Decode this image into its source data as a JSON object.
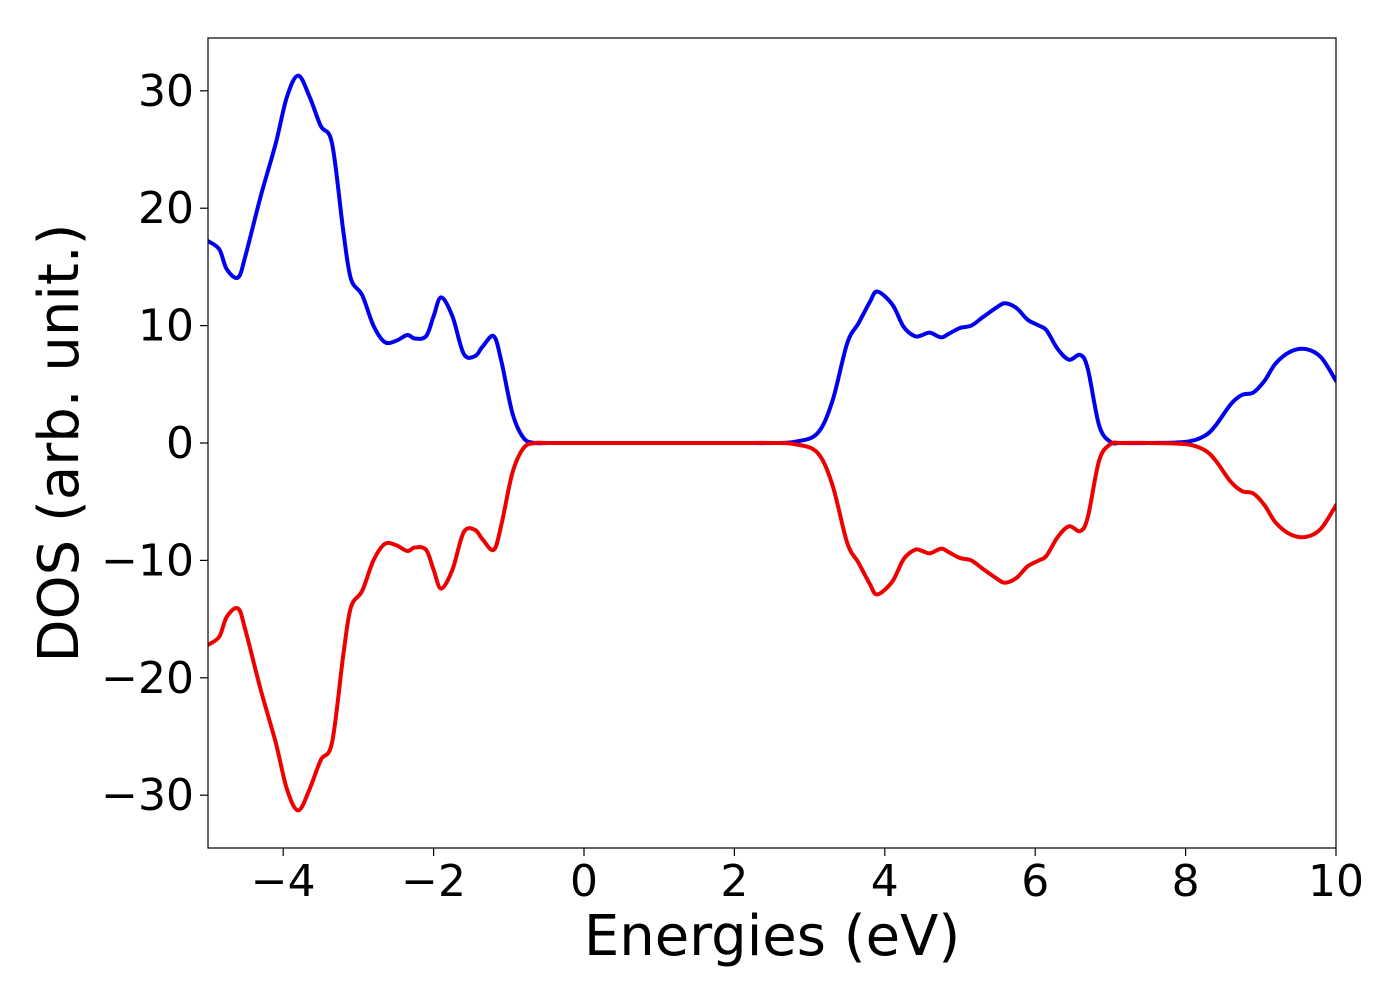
{
  "chart_data": {
    "type": "line",
    "title": "",
    "xlabel": "Energies (eV)",
    "ylabel": "DOS (arb. unit.)",
    "xlim": [
      -5,
      10
    ],
    "ylim": [
      -34.5,
      34.5
    ],
    "xticks": [
      -4,
      -2,
      0,
      2,
      4,
      6,
      8,
      10
    ],
    "xtick_labels": [
      "−4",
      "−2",
      "0",
      "2",
      "4",
      "6",
      "8",
      "10"
    ],
    "yticks": [
      30,
      20,
      10,
      0,
      -10,
      -20,
      -30
    ],
    "ytick_labels": [
      "30",
      "20",
      "10",
      "0",
      "−10",
      "−20",
      "−30"
    ],
    "grid": false,
    "legend": "none",
    "series": [
      {
        "color": "#0000ee",
        "x": [
          -5.0,
          -4.85,
          -4.75,
          -4.6,
          -4.5,
          -4.3,
          -4.1,
          -3.95,
          -3.8,
          -3.65,
          -3.5,
          -3.35,
          -3.2,
          -3.1,
          -2.95,
          -2.8,
          -2.65,
          -2.5,
          -2.35,
          -2.25,
          -2.1,
          -2.0,
          -1.9,
          -1.75,
          -1.6,
          -1.45,
          -1.35,
          -1.2,
          -1.1,
          -0.95,
          -0.8,
          -0.65,
          -0.5,
          0.0,
          1.0,
          2.0,
          2.5,
          2.8,
          3.1,
          3.3,
          3.5,
          3.65,
          3.8,
          3.9,
          4.1,
          4.25,
          4.4,
          4.5,
          4.6,
          4.75,
          4.85,
          5.0,
          5.15,
          5.3,
          5.5,
          5.6,
          5.75,
          5.9,
          6.05,
          6.15,
          6.3,
          6.45,
          6.6,
          6.7,
          6.85,
          7.0,
          7.15,
          7.5,
          8.0,
          8.25,
          8.4,
          8.6,
          8.75,
          8.9,
          9.05,
          9.2,
          9.4,
          9.6,
          9.8,
          10.0
        ],
        "values": [
          17.2,
          16.5,
          14.8,
          14.1,
          16.0,
          21.0,
          25.5,
          29.5,
          31.3,
          29.5,
          27.0,
          25.5,
          18.0,
          14.0,
          12.6,
          10.0,
          8.6,
          8.7,
          9.2,
          8.9,
          9.1,
          10.8,
          12.4,
          10.8,
          7.6,
          7.4,
          8.2,
          9.1,
          7.0,
          2.5,
          0.4,
          0.0,
          0.0,
          0.0,
          0.0,
          0.0,
          0.0,
          0.1,
          0.8,
          3.5,
          8.5,
          10.2,
          12.0,
          12.9,
          11.8,
          9.9,
          9.1,
          9.2,
          9.4,
          9.0,
          9.3,
          9.8,
          10.0,
          10.7,
          11.6,
          11.9,
          11.5,
          10.5,
          10.0,
          9.6,
          8.0,
          7.1,
          7.5,
          6.3,
          1.5,
          0.1,
          0.0,
          0.0,
          0.1,
          0.6,
          1.5,
          3.3,
          4.1,
          4.3,
          5.3,
          6.8,
          7.8,
          8.0,
          7.3,
          5.3
        ]
      },
      {
        "color": "#ee0000",
        "x": [
          -5.0,
          -4.85,
          -4.75,
          -4.6,
          -4.5,
          -4.3,
          -4.1,
          -3.95,
          -3.8,
          -3.65,
          -3.5,
          -3.35,
          -3.2,
          -3.1,
          -2.95,
          -2.8,
          -2.65,
          -2.5,
          -2.35,
          -2.25,
          -2.1,
          -2.0,
          -1.9,
          -1.75,
          -1.6,
          -1.45,
          -1.35,
          -1.2,
          -1.1,
          -0.95,
          -0.8,
          -0.65,
          -0.5,
          0.0,
          1.0,
          2.0,
          2.5,
          2.8,
          3.1,
          3.3,
          3.5,
          3.65,
          3.8,
          3.9,
          4.1,
          4.25,
          4.4,
          4.5,
          4.6,
          4.75,
          4.85,
          5.0,
          5.15,
          5.3,
          5.5,
          5.6,
          5.75,
          5.9,
          6.05,
          6.15,
          6.3,
          6.45,
          6.6,
          6.7,
          6.85,
          7.0,
          7.15,
          7.5,
          8.0,
          8.25,
          8.4,
          8.6,
          8.75,
          8.9,
          9.05,
          9.2,
          9.4,
          9.6,
          9.8,
          10.0
        ],
        "values": [
          -17.2,
          -16.5,
          -14.8,
          -14.1,
          -16.0,
          -21.0,
          -25.5,
          -29.5,
          -31.3,
          -29.5,
          -27.0,
          -25.5,
          -18.0,
          -14.0,
          -12.6,
          -10.0,
          -8.6,
          -8.7,
          -9.2,
          -8.9,
          -9.1,
          -10.8,
          -12.4,
          -10.8,
          -7.6,
          -7.4,
          -8.2,
          -9.1,
          -7.0,
          -2.5,
          -0.4,
          0.0,
          0.0,
          0.0,
          0.0,
          0.0,
          0.0,
          -0.1,
          -0.8,
          -3.5,
          -8.5,
          -10.2,
          -12.0,
          -12.9,
          -11.8,
          -9.9,
          -9.1,
          -9.2,
          -9.4,
          -9.0,
          -9.3,
          -9.8,
          -10.0,
          -10.7,
          -11.6,
          -11.9,
          -11.5,
          -10.5,
          -10.0,
          -9.6,
          -8.0,
          -7.1,
          -7.5,
          -6.3,
          -1.5,
          -0.1,
          0.0,
          0.0,
          -0.1,
          -0.6,
          -1.5,
          -3.3,
          -4.1,
          -4.3,
          -5.3,
          -6.8,
          -7.8,
          -8.0,
          -7.3,
          -5.3
        ]
      }
    ]
  }
}
